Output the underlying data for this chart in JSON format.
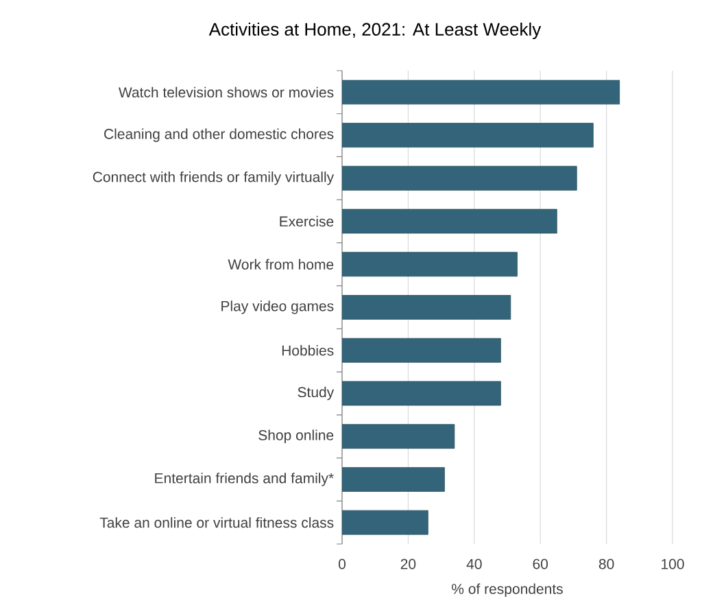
{
  "chart_data": {
    "type": "bar",
    "orientation": "horizontal",
    "title": "Activities at Home, 2021: At Least Weekly",
    "xlabel": "% of respondents",
    "categories": [
      "Watch television shows or movies",
      "Cleaning and other domestic chores",
      "Connect with friends or family virtually",
      "Exercise",
      "Work from home",
      "Play video games",
      "Hobbies",
      "Study",
      "Shop online",
      "Entertain friends and family*",
      "Take an online or virtual fitness class"
    ],
    "values": [
      84,
      76,
      71,
      65,
      53,
      51,
      48,
      48,
      34,
      31,
      26
    ],
    "color": "#336479",
    "xlim": [
      0,
      100
    ],
    "xticks": [
      0,
      20,
      40,
      60,
      80,
      100
    ],
    "grid": "x"
  }
}
